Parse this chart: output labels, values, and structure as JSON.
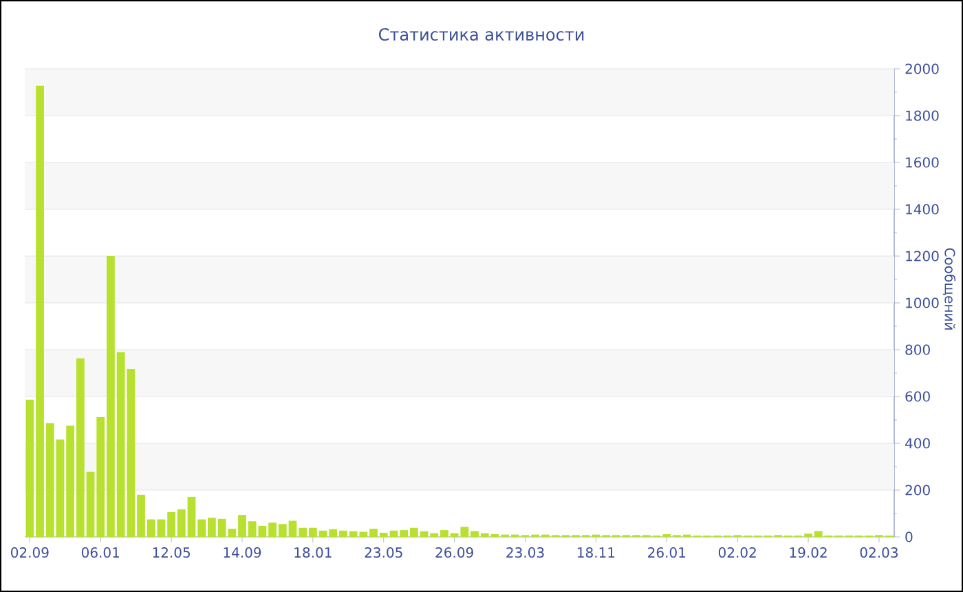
{
  "chart_data": {
    "type": "bar",
    "title": "Статистика активности",
    "ylabel": "Сообщений",
    "categories": [
      "02.09",
      null,
      null,
      null,
      null,
      null,
      null,
      "06.01",
      null,
      null,
      null,
      null,
      null,
      null,
      "12.05",
      null,
      null,
      null,
      null,
      null,
      null,
      "14.09",
      null,
      null,
      null,
      null,
      null,
      null,
      "18.01",
      null,
      null,
      null,
      null,
      null,
      null,
      "23.05",
      null,
      null,
      null,
      null,
      null,
      null,
      "26.09",
      null,
      null,
      null,
      null,
      null,
      null,
      "23.03",
      null,
      null,
      null,
      null,
      null,
      null,
      "18.11",
      null,
      null,
      null,
      null,
      null,
      null,
      "26.01",
      null,
      null,
      null,
      null,
      null,
      null,
      "02.02",
      null,
      null,
      null,
      null,
      null,
      null,
      "19.02",
      null,
      null,
      null,
      null,
      null,
      null,
      "02.03",
      null
    ],
    "values": [
      586,
      1927,
      486,
      416,
      475,
      763,
      278,
      512,
      1200,
      790,
      718,
      180,
      75,
      75,
      106,
      118,
      171,
      75,
      82,
      77,
      35,
      94,
      67,
      47,
      61,
      55,
      69,
      39,
      39,
      27,
      33,
      27,
      24,
      22,
      35,
      18,
      27,
      29,
      39,
      24,
      16,
      29,
      16,
      43,
      25,
      16,
      12,
      10,
      10,
      8,
      10,
      10,
      8,
      8,
      8,
      8,
      10,
      8,
      8,
      8,
      8,
      8,
      6,
      12,
      8,
      10,
      6,
      6,
      6,
      6,
      8,
      6,
      6,
      6,
      8,
      6,
      6,
      14,
      25,
      6,
      6,
      6,
      6,
      6,
      8,
      6
    ],
    "color": "#b8e02e",
    "ylim": [
      0,
      2000
    ],
    "yticks": [
      0,
      200,
      400,
      600,
      800,
      1000,
      1200,
      1400,
      1600,
      1800,
      2000
    ],
    "grid": "y"
  }
}
